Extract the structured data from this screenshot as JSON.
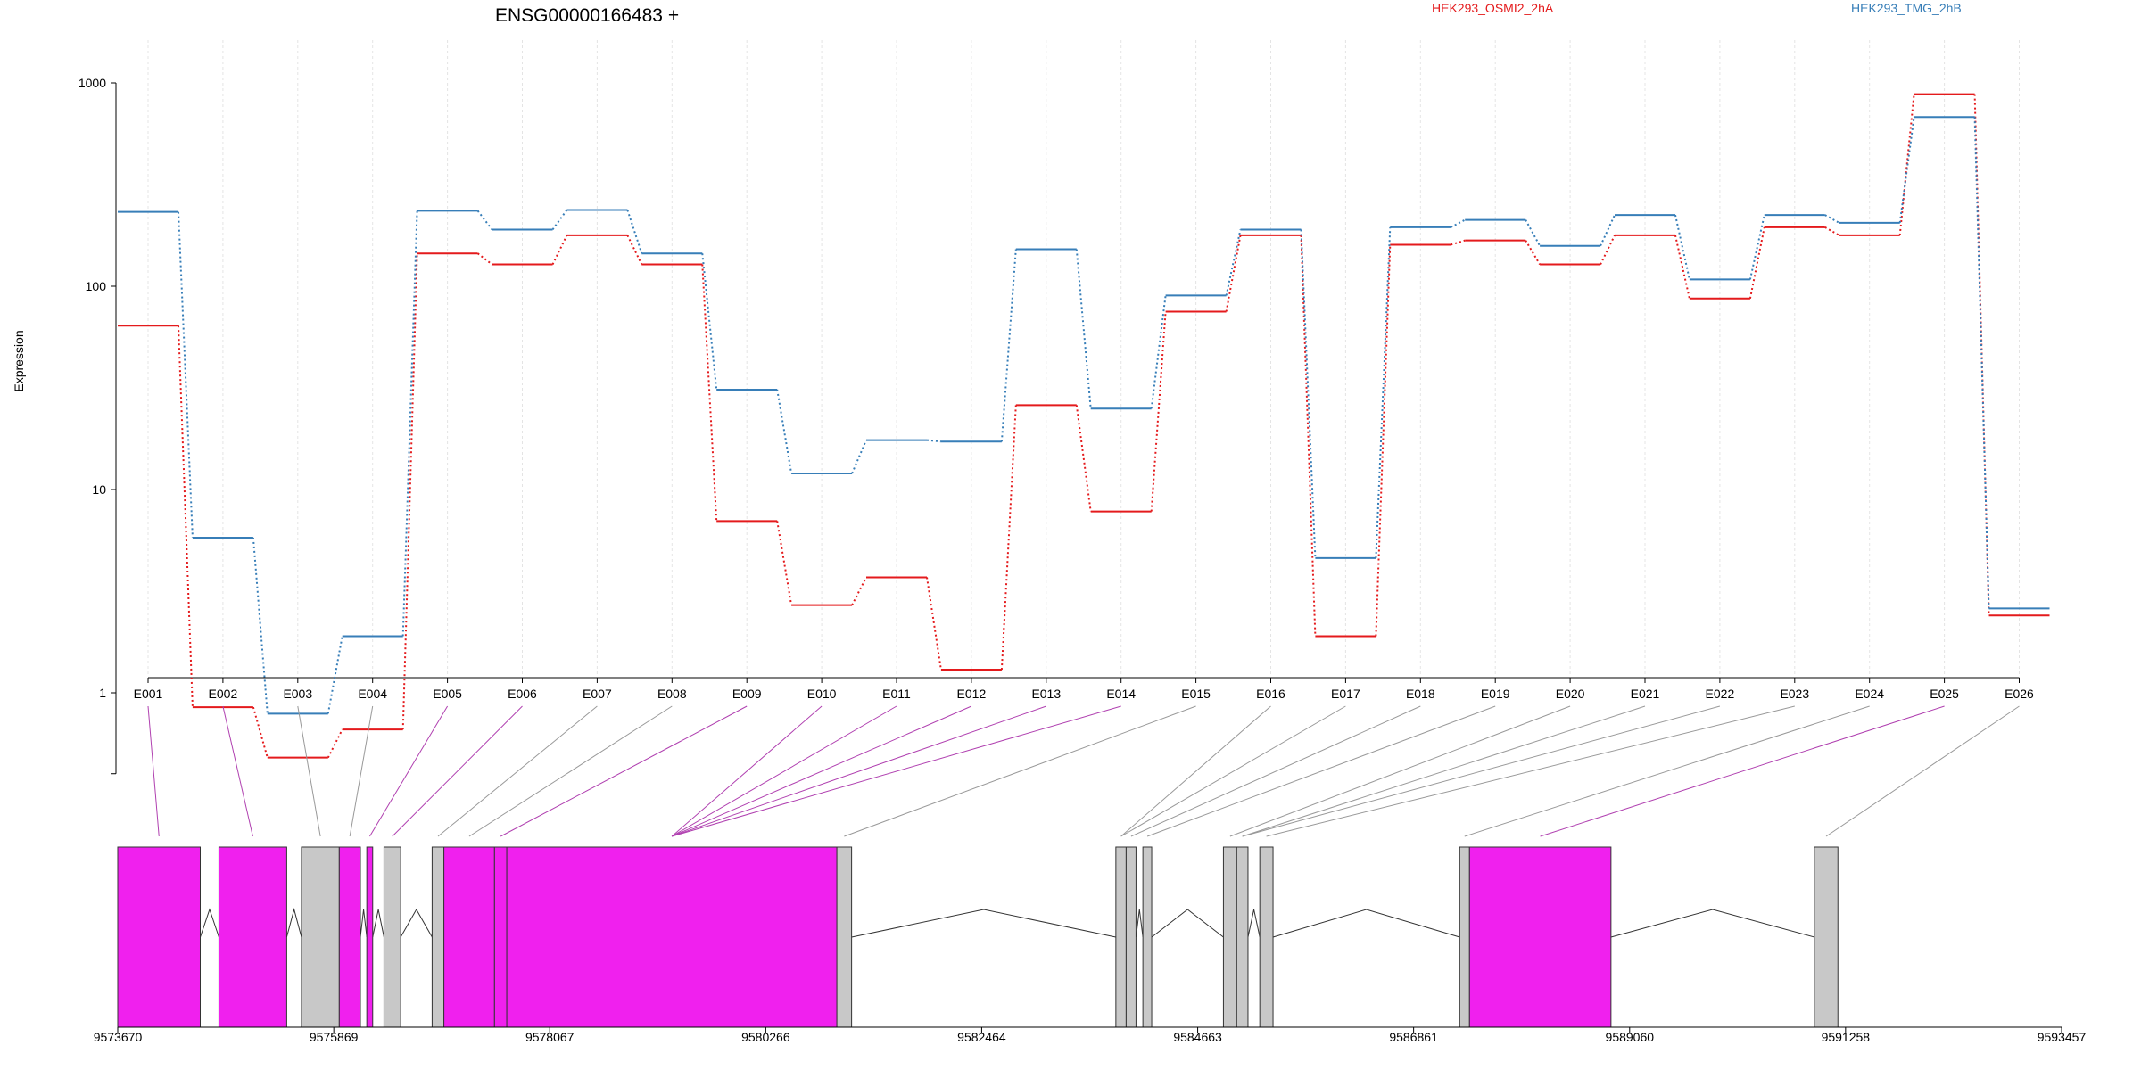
{
  "chart_data": {
    "type": "line",
    "title": "ENSG00000166483 +",
    "ylabel": "Expression",
    "y_scale": "log",
    "yticks": [
      {
        "value": 1,
        "label": "1"
      },
      {
        "value": 10,
        "label": "10"
      },
      {
        "value": 100,
        "label": "100"
      },
      {
        "value": 1000,
        "label": "1000"
      }
    ],
    "ylim": [
      0.4,
      1000
    ],
    "grid": "vertical, dotted",
    "legend_placement": "top-right",
    "exons": [
      "E001",
      "E002",
      "E003",
      "E004",
      "E005",
      "E006",
      "E007",
      "E008",
      "E009",
      "E010",
      "E011",
      "E012",
      "E013",
      "E014",
      "E015",
      "E016",
      "E017",
      "E018",
      "E019",
      "E020",
      "E021",
      "E022",
      "E023",
      "E024",
      "E025",
      "E026"
    ],
    "series": [
      {
        "name": "HEK293_OSMI2_2hA",
        "color": "#e41a1c",
        "values": [
          64,
          0.85,
          0.48,
          0.66,
          145,
          128,
          178,
          128,
          7,
          2.7,
          3.7,
          1.3,
          26,
          7.8,
          75,
          178,
          1.9,
          160,
          168,
          128,
          178,
          87,
          195,
          178,
          880,
          2.4
        ]
      },
      {
        "name": "HEK293_TMG_2hB",
        "color": "#377eb8",
        "values": [
          232,
          5.8,
          0.79,
          1.9,
          235,
          190,
          237,
          145,
          31,
          12,
          17.5,
          17.2,
          152,
          25,
          90,
          190,
          4.6,
          195,
          212,
          158,
          224,
          108,
          224,
          205,
          680,
          2.6
        ]
      }
    ]
  },
  "gene_model": {
    "coordinate_labels": [
      "9573670",
      "9575869",
      "9578067",
      "9580266",
      "9582464",
      "9584663",
      "9586861",
      "9589060",
      "9591258",
      "9593457"
    ],
    "coordinate_values": [
      9573670,
      9575869,
      9578067,
      9580266,
      9582464,
      9584663,
      9586861,
      9589060,
      9591258,
      9593457
    ],
    "genomic_range": [
      9573670,
      9593457
    ],
    "exon_spans": [
      [
        9573670,
        9574510
      ],
      [
        9574700,
        9575390
      ],
      [
        9575540,
        9575925
      ],
      [
        9575925,
        9576140
      ],
      [
        9576205,
        9576265
      ],
      [
        9576380,
        9576550
      ],
      [
        9576870,
        9576990
      ],
      [
        9576990,
        9577505
      ],
      [
        9577505,
        9577630
      ],
      [
        9577630,
        9580990
      ],
      [
        9580990,
        9581140
      ],
      [
        9583830,
        9583935
      ],
      [
        9583935,
        9584035
      ],
      [
        9584105,
        9584195
      ],
      [
        9584925,
        9585060
      ],
      [
        9585060,
        9585175
      ],
      [
        9585295,
        9585430
      ],
      [
        9587330,
        9587430
      ],
      [
        9587430,
        9588870
      ],
      [
        9590940,
        9591180
      ]
    ],
    "exon_is_highlighted": [
      true,
      true,
      false,
      true,
      true,
      false,
      false,
      true,
      true,
      true,
      false,
      false,
      false,
      false,
      false,
      false,
      false,
      false,
      true,
      false
    ],
    "exon_to_span_index": [
      0,
      1,
      2,
      3,
      4,
      5,
      6,
      7,
      8,
      9,
      9,
      9,
      9,
      9,
      10,
      11,
      11,
      12,
      13,
      14,
      15,
      15,
      16,
      17,
      18,
      19
    ],
    "exon_pointer_highlighted": [
      true,
      true,
      false,
      false,
      true,
      true,
      false,
      false,
      true,
      true,
      true,
      true,
      true,
      true,
      false,
      false,
      false,
      false,
      false,
      false,
      false,
      false,
      false,
      false,
      true,
      false
    ],
    "colors": {
      "highlight": "#f020ee",
      "plain": "#c8c8c8",
      "edge": "#333333"
    }
  }
}
